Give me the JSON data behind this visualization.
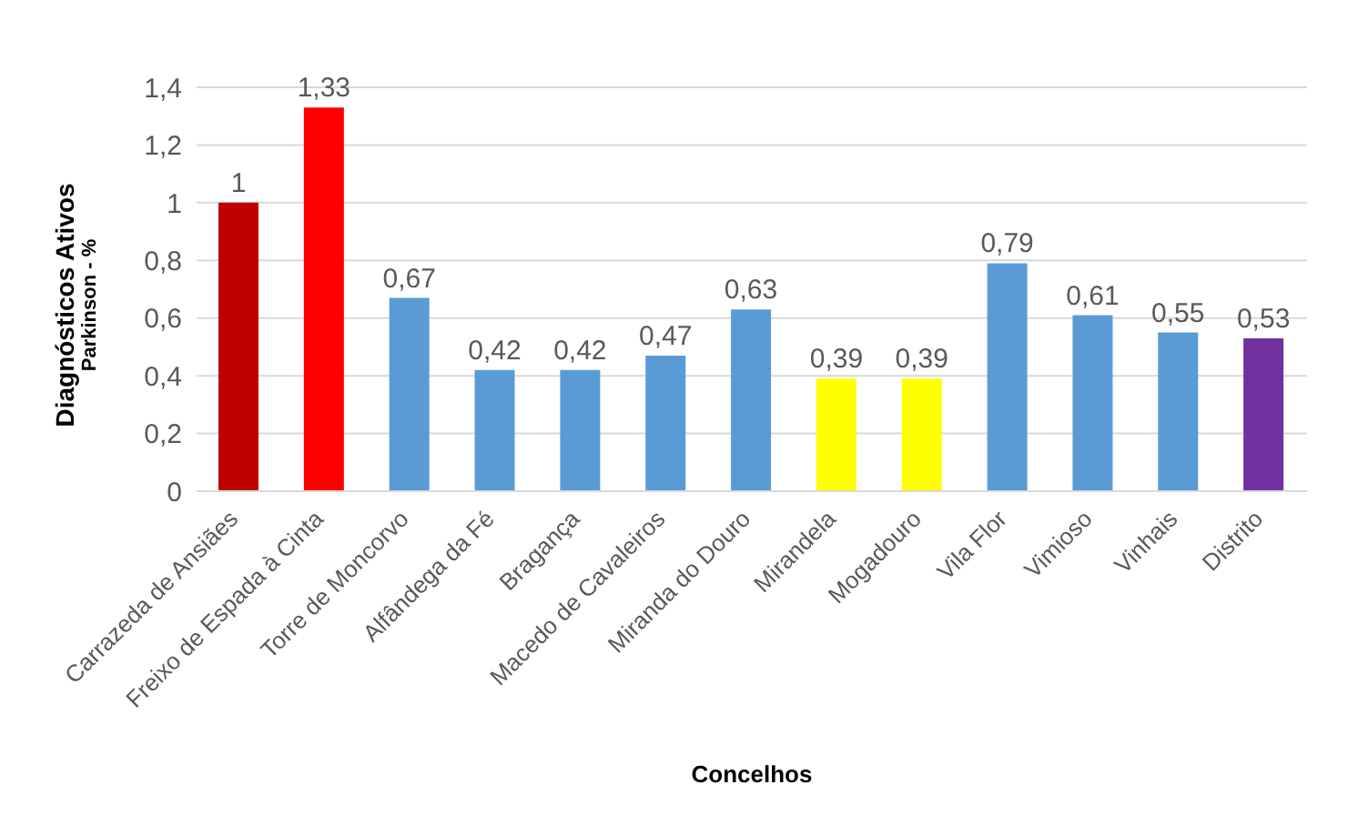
{
  "chart_data": {
    "type": "bar",
    "categories": [
      "Carrazeda de Ansiães",
      "Freixo de Espada à Cinta",
      "Torre de Moncorvo",
      "Alfândega da Fé",
      "Bragança",
      "Macedo de Cavaleiros",
      "Miranda do Douro",
      "Mirandela",
      "Mogadouro",
      "Vila Flor",
      "Vimioso",
      "Vinhais",
      "Distrito"
    ],
    "values": [
      1,
      1.33,
      0.67,
      0.42,
      0.42,
      0.47,
      0.63,
      0.39,
      0.39,
      0.79,
      0.61,
      0.55,
      0.53
    ],
    "colors": [
      "#c00000",
      "#ff0000",
      "#5b9bd5",
      "#5b9bd5",
      "#5b9bd5",
      "#5b9bd5",
      "#5b9bd5",
      "#ffff00",
      "#ffff00",
      "#5b9bd5",
      "#5b9bd5",
      "#5b9bd5",
      "#7030a0"
    ],
    "value_labels": [
      "1",
      "1,33",
      "0,67",
      "0,42",
      "0,42",
      "0,47",
      "0,63",
      "0,39",
      "0,39",
      "0,79",
      "0,61",
      "0,55",
      "0,53"
    ],
    "xlabel": "Concelhos",
    "ylabel": "Diagnósticos Ativos\nParkinson - %",
    "ylim": [
      0,
      1.4
    ],
    "yticks": [
      0,
      {
        "value": 0.2,
        "label": "0,2"
      },
      {
        "value": 0.4,
        "label": "0,4"
      },
      {
        "value": 0.6,
        "label": "0,6"
      },
      {
        "value": 0.8,
        "label": "0,8"
      },
      1,
      {
        "value": 1.2,
        "label": "1,2"
      },
      {
        "value": 1.4,
        "label": "1,4"
      }
    ],
    "grid": "y",
    "legend": false
  }
}
